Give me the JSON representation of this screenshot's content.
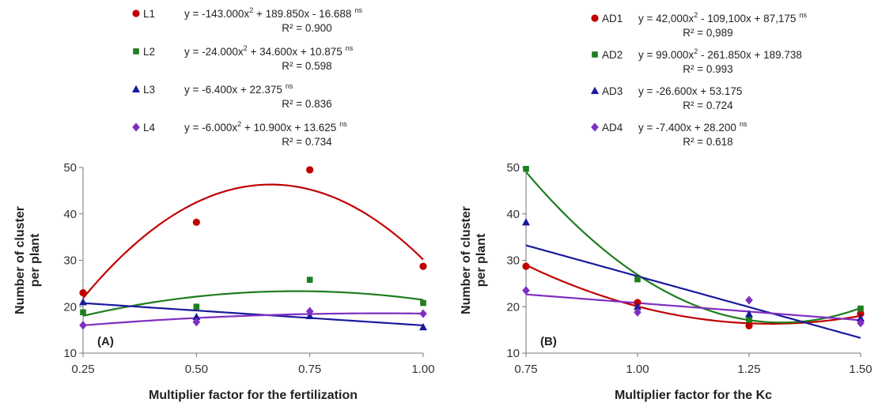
{
  "chart_data": [
    {
      "type": "scatter",
      "panel_label": "(A)",
      "xlabel": "Multiplier factor for the fertilization",
      "ylabel_line1": "Number  of cluster",
      "ylabel_line2": "per plant",
      "xlim": [
        0.25,
        1.0
      ],
      "ylim": [
        10,
        50
      ],
      "x_ticks": [
        "0.25",
        "0.50",
        "0.75",
        "1.00"
      ],
      "y_ticks": [
        "10",
        "20",
        "30",
        "40",
        "50"
      ],
      "grid": false,
      "x": [
        0.25,
        0.5,
        0.75,
        1.0
      ],
      "series": [
        {
          "name": "L1",
          "color": "#c00000",
          "marker": "circle",
          "values": [
            23.0,
            38.2,
            49.5,
            28.7
          ],
          "fit": {
            "type": "quadratic",
            "a": -143.0,
            "b": 189.85,
            "c": -16.688
          },
          "equation": "y = -143.000x",
          "equation_tail": " + 189.850x - 16.688",
          "sig": "ns",
          "r2": "R² = 0.900"
        },
        {
          "name": "L2",
          "color": "#1e7d1e",
          "marker": "square",
          "values": [
            18.8,
            20.0,
            25.8,
            20.8
          ],
          "fit": {
            "type": "quadratic",
            "a": -24.0,
            "b": 34.6,
            "c": 10.875
          },
          "equation": "y = -24.000x",
          "equation_tail": " + 34.600x + 10.875",
          "sig": "ns",
          "r2": "R² = 0.598"
        },
        {
          "name": "L3",
          "color": "#1a1a9c",
          "marker": "triangle",
          "values": [
            21.0,
            17.8,
            18.0,
            15.6
          ],
          "fit": {
            "type": "linear",
            "a": 0,
            "b": -6.4,
            "c": 22.375
          },
          "equation": "y = -6.400x + 22.375",
          "equation_tail": "",
          "sig": "ns",
          "r2": "R² = 0.836"
        },
        {
          "name": "L4",
          "color": "#7f2fc0",
          "marker": "diamond",
          "values": [
            16.0,
            16.7,
            19.0,
            18.5
          ],
          "fit": {
            "type": "quadratic",
            "a": -6.0,
            "b": 10.9,
            "c": 13.625
          },
          "equation": "y = -6.000x",
          "equation_tail": " + 10.900x + 13.625",
          "sig": "ns",
          "r2": "R² = 0.734"
        }
      ]
    },
    {
      "type": "scatter",
      "panel_label": "(B)",
      "xlabel": "Multiplier factor for the Kc",
      "ylabel_line1": "Number  of cluster",
      "ylabel_line2": "per plant",
      "xlim": [
        0.75,
        1.5
      ],
      "ylim": [
        10,
        50
      ],
      "x_ticks": [
        "0.75",
        "1.00",
        "1.25",
        "1.50"
      ],
      "y_ticks": [
        "10",
        "20",
        "30",
        "40",
        "50"
      ],
      "grid": false,
      "x": [
        0.75,
        1.0,
        1.25,
        1.5
      ],
      "series": [
        {
          "name": "AD1",
          "color": "#c00000",
          "marker": "circle",
          "values": [
            28.7,
            20.9,
            15.9,
            18.5
          ],
          "fit": {
            "type": "quadratic",
            "a": 42.0,
            "b": -109.1,
            "c": 87.175
          },
          "equation": "y = 42,000x",
          "equation_tail": " - 109,100x + 87,175",
          "sig": "ns",
          "r2": "R² = 0,989"
        },
        {
          "name": "AD2",
          "color": "#1e7d1e",
          "marker": "square",
          "values": [
            49.7,
            25.9,
            17.2,
            19.6
          ],
          "fit": {
            "type": "quadratic",
            "a": 99.0,
            "b": -261.85,
            "c": 189.738
          },
          "equation": "y = 99.000x",
          "equation_tail": " - 261.850x + 189.738",
          "sig": "",
          "r2": "R² = 0.993"
        },
        {
          "name": "AD3",
          "color": "#1a1a9c",
          "marker": "triangle",
          "values": [
            38.2,
            20.0,
            18.4,
            17.5
          ],
          "fit": {
            "type": "linear",
            "a": 0,
            "b": -26.6,
            "c": 53.175
          },
          "equation": "y = -26.600x + 53.175",
          "equation_tail": "",
          "sig": "",
          "r2": "R² = 0.724"
        },
        {
          "name": "AD4",
          "color": "#7f2fc0",
          "marker": "diamond",
          "values": [
            23.5,
            18.8,
            21.4,
            16.5
          ],
          "fit": {
            "type": "linear",
            "a": 0,
            "b": -7.4,
            "c": 28.2
          },
          "equation": "y = -7.400x + 28.200",
          "equation_tail": "",
          "sig": "ns",
          "r2": "R² = 0.618"
        }
      ]
    }
  ]
}
